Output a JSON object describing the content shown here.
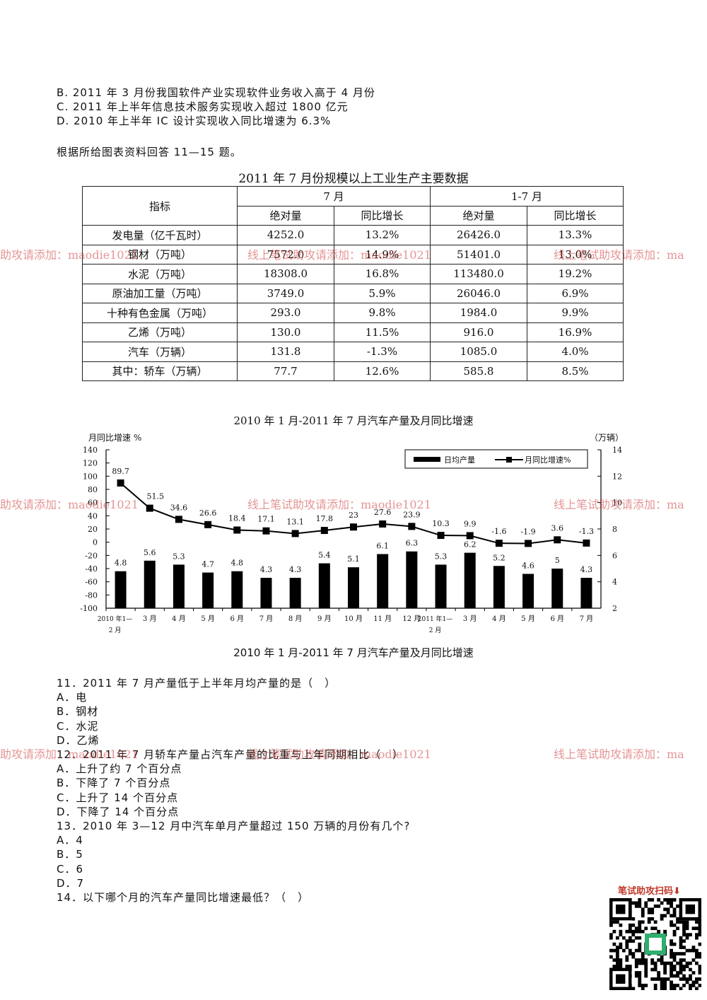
{
  "options_prev": [
    "B. 2011 年 3 月份我国软件产业实现软件业务收入高于 4 月份",
    "C. 2011 年上半年信息技术服务实现收入超过 1800 亿元",
    "D. 2010 年上半年 IC 设计实现收入同比增速为 6.3%"
  ],
  "intro": "根据所给图表资料回答 11—15 题。",
  "table": {
    "title": "2011 年 7 月份规模以上工业生产主要数据",
    "header": {
      "indicator": "指标",
      "group1": "7 月",
      "group2": "1-7 月",
      "abs": "绝对量",
      "yoy": "同比增长",
      "abs2": "绝对量",
      "yoy2": "同比增长"
    },
    "rows": [
      {
        "name": "发电量（亿千瓦时）",
        "jul": "4252.0",
        "jul_yoy": "13.2%",
        "ytd": "26426.0",
        "ytd_yoy": "13.3%"
      },
      {
        "name": "钢材（万吨）",
        "jul": "7572.0",
        "jul_yoy": "14.9%",
        "ytd": "51401.0",
        "ytd_yoy": "13.0%"
      },
      {
        "name": "水泥（万吨）",
        "jul": "18308.0",
        "jul_yoy": "16.8%",
        "ytd": "113480.0",
        "ytd_yoy": "19.2%"
      },
      {
        "name": "原油加工量（万吨）",
        "jul": "3749.0",
        "jul_yoy": "5.9%",
        "ytd": "26046.0",
        "ytd_yoy": "6.9%"
      },
      {
        "name": "十种有色金属（万吨）",
        "jul": "293.0",
        "jul_yoy": "9.8%",
        "ytd": "1984.0",
        "ytd_yoy": "9.9%"
      },
      {
        "name": "乙烯（万吨）",
        "jul": "130.0",
        "jul_yoy": "11.5%",
        "ytd": "916.0",
        "ytd_yoy": "16.9%"
      },
      {
        "name": "汽车（万辆）",
        "jul": "131.8",
        "jul_yoy": "-1.3%",
        "ytd": "1085.0",
        "ytd_yoy": "4.0%"
      },
      {
        "name": "其中：轿车（万辆）",
        "jul": "77.7",
        "jul_yoy": "12.6%",
        "ytd": "585.8",
        "ytd_yoy": "8.5%"
      }
    ]
  },
  "chart_title": "2010 年 1 月-2011 年 7 月汽车产量及月同比增速",
  "chart_caption": "2010 年 1 月-2011 年 7 月汽车产量及月同比增速",
  "chart_data": {
    "type": "bar",
    "title": "2010 年 1 月-2011 年 7 月汽车产量及月同比增速",
    "categories": [
      "2010 年1—2 月",
      "3 月",
      "4 月",
      "5 月",
      "6 月",
      "7 月",
      "8 月",
      "9 月",
      "10 月",
      "11 月",
      "12 月",
      "2011 年1—2 月",
      "3 月",
      "4 月",
      "5 月",
      "6 月",
      "7 月"
    ],
    "y_left_label": "月同比增速 %",
    "y_right_label": "（万辆）",
    "y_left_range": [
      -100,
      140
    ],
    "y_left_ticks": [
      140,
      120,
      100,
      80,
      60,
      40,
      20,
      0,
      -20,
      -40,
      -60,
      -80,
      -100
    ],
    "y_right_range": [
      2,
      14
    ],
    "y_right_ticks": [
      14,
      12,
      10,
      8,
      6,
      4,
      2
    ],
    "legend_placement": "top-right",
    "series": [
      {
        "name": "日均产量",
        "type": "bar",
        "axis": "right",
        "values": [
          4.8,
          5.6,
          5.3,
          4.7,
          4.8,
          4.3,
          4.3,
          5.4,
          5.1,
          6.1,
          6.3,
          5.3,
          6.2,
          5.2,
          4.6,
          5,
          4.3
        ]
      },
      {
        "name": "月同比增速%",
        "type": "line",
        "axis": "left",
        "values": [
          89.7,
          51.5,
          34.6,
          26.6,
          18.4,
          17.1,
          13.1,
          17.8,
          23,
          27.6,
          23.9,
          10.3,
          9.9,
          -1.6,
          -1.9,
          3.6,
          -1.3
        ]
      }
    ]
  },
  "questions": [
    "11．2011 年 7 月产量低于上半年月均产量的是（　）",
    "A．电",
    "B．钢材",
    "C．水泥",
    "D．乙烯",
    "12．2011 年 7 月轿车产量占汽车产量的比重与上年同期相比（　）",
    "A．上升了约 7 个百分点",
    "B．下降了 7 个百分点",
    "C．上升了 14 个百分点",
    "D．下降了 14 个百分点",
    "13．2010 年 3—12 月中汽车单月产量超过 150 万辆的月份有几个?",
    "A．4",
    "B．5",
    "C．6",
    "D．7",
    "14．以下哪个月的汽车产量同比增速最低？（　）"
  ],
  "watermark_left": "助攻请添加：maodie1021",
  "watermark_mid": "线上笔试助攻请添加：maodie1021",
  "watermark_right": "线上笔试助攻请添加：ma",
  "qr_label": "笔试助攻扫码⬇",
  "colors": {
    "watermark": "#cd3c3c",
    "bar": "#000000",
    "line": "#000000",
    "qr": "#c0392b"
  }
}
